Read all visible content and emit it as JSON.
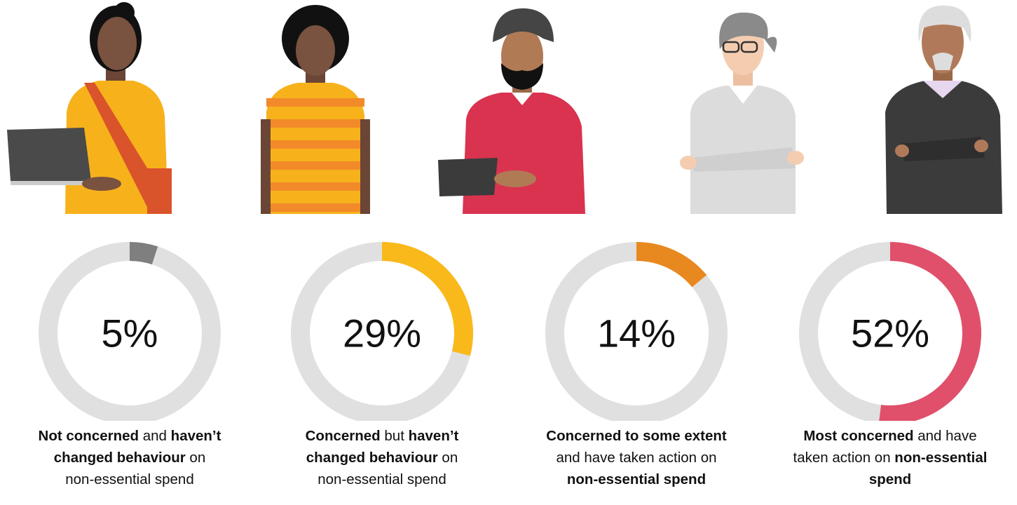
{
  "chart_data": [
    {
      "type": "donut",
      "values": [
        5
      ],
      "value_labels": [
        "5%"
      ],
      "color": "#7f7f7f",
      "caption": [
        [
          {
            "text": "Not concerned",
            "bold": true
          },
          {
            "text": " and ",
            "bold": false
          },
          {
            "text": "haven’t",
            "bold": true
          }
        ],
        [
          {
            "text": "changed behaviour",
            "bold": true
          },
          {
            "text": " on",
            "bold": false
          }
        ],
        [
          {
            "text": "non-essential spend",
            "bold": false
          }
        ]
      ]
    },
    {
      "type": "donut",
      "values": [
        29
      ],
      "value_labels": [
        "29%"
      ],
      "color": "#f9b91a",
      "caption": [
        [
          {
            "text": "Concerned",
            "bold": true
          },
          {
            "text": " but ",
            "bold": false
          },
          {
            "text": "haven’t",
            "bold": true
          }
        ],
        [
          {
            "text": "changed behaviour",
            "bold": true
          },
          {
            "text": " on",
            "bold": false
          }
        ],
        [
          {
            "text": "non-essential spend",
            "bold": false
          }
        ]
      ]
    },
    {
      "type": "donut",
      "values": [
        14
      ],
      "value_labels": [
        "14%"
      ],
      "color": "#e8891f",
      "caption": [
        [
          {
            "text": "Concerned to some extent",
            "bold": true
          }
        ],
        [
          {
            "text": "and have taken action on",
            "bold": false
          }
        ],
        [
          {
            "text": "non-essential spend",
            "bold": true
          }
        ]
      ]
    },
    {
      "type": "donut",
      "values": [
        52
      ],
      "value_labels": [
        "52%"
      ],
      "color": "#e0506a",
      "caption": [
        [
          {
            "text": "Most concerned",
            "bold": true
          },
          {
            "text": " and have",
            "bold": false
          }
        ],
        [
          {
            "text": "taken action on ",
            "bold": false
          },
          {
            "text": "non-essential",
            "bold": true
          }
        ],
        [
          {
            "text": "spend",
            "bold": true
          }
        ]
      ]
    }
  ]
}
